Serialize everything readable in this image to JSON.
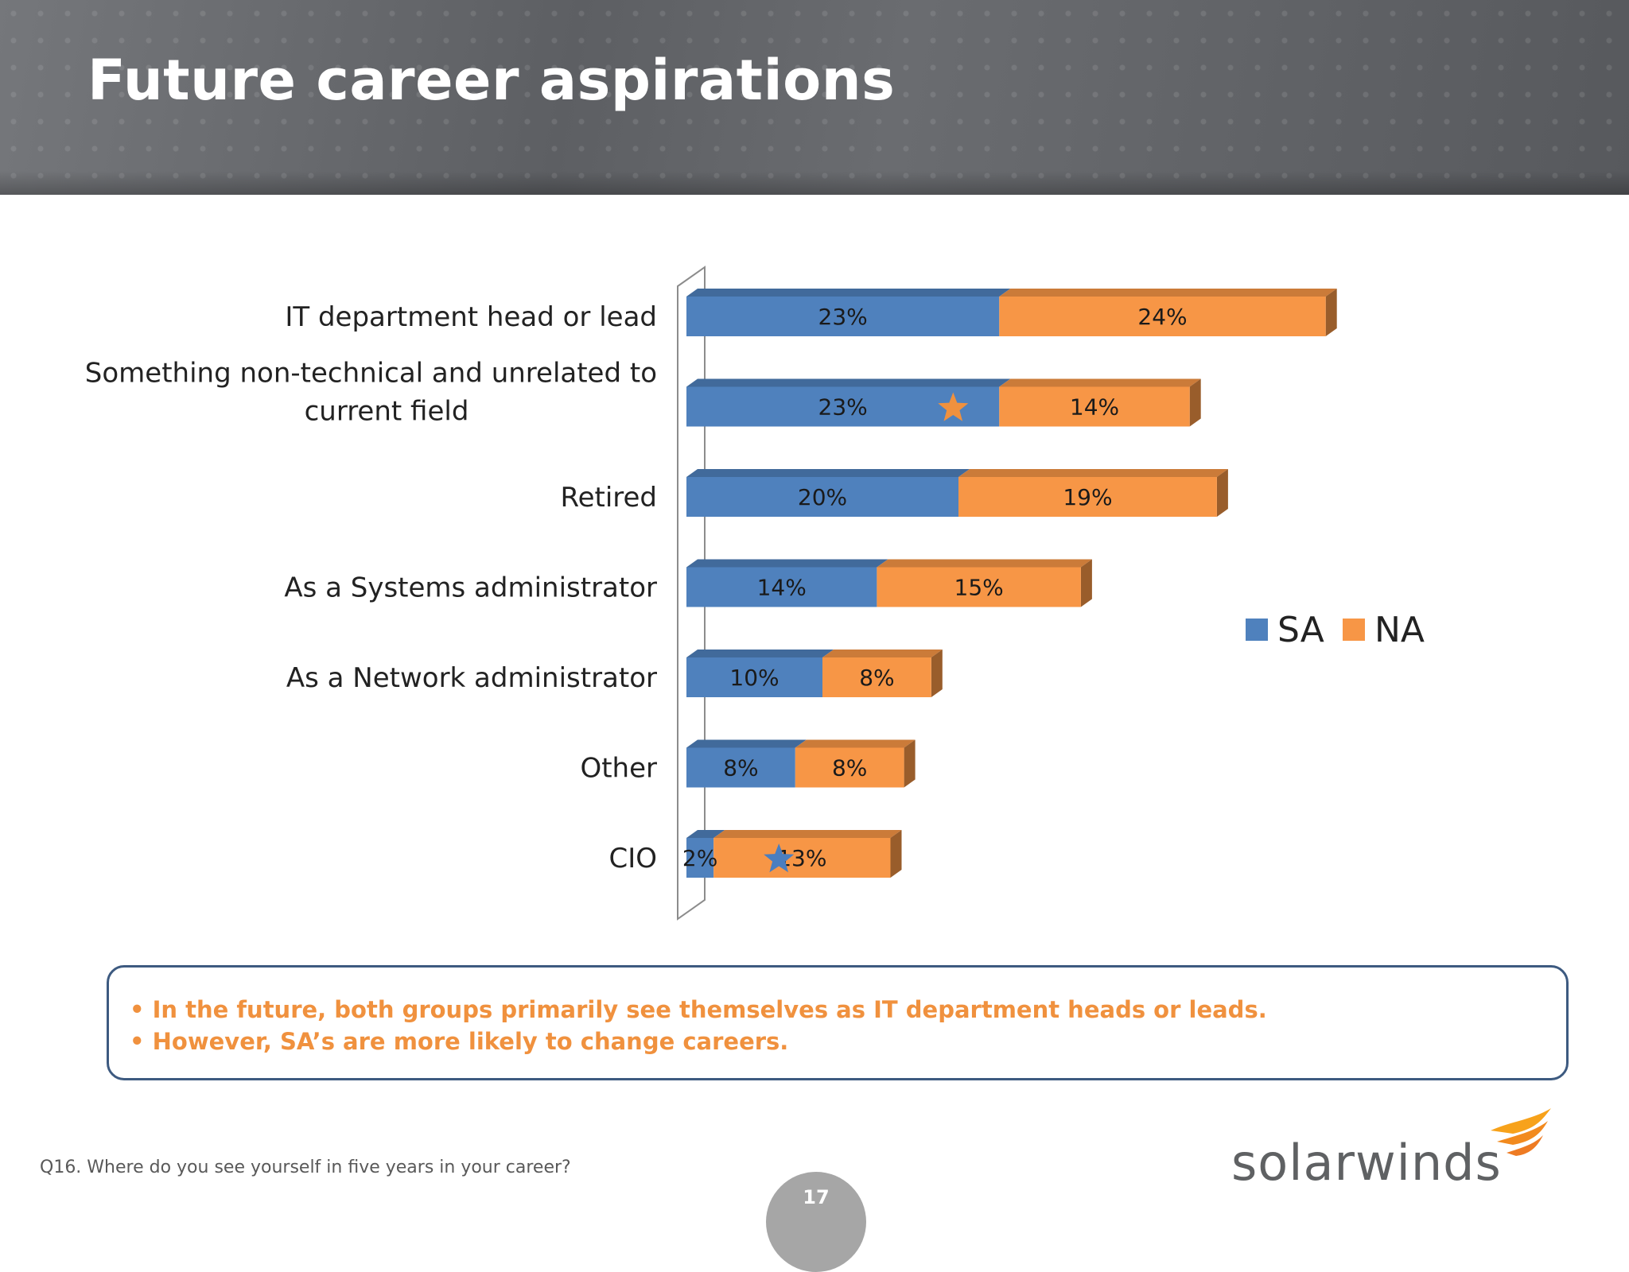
{
  "header": {
    "title": "Future career aspirations"
  },
  "chart_data": {
    "type": "bar",
    "orientation": "horizontal",
    "stacked": true,
    "categories": [
      [
        "IT department head or lead"
      ],
      [
        "Something non-technical and unrelated to",
        "current field"
      ],
      [
        "Retired"
      ],
      [
        "As a Systems administrator"
      ],
      [
        "As a Network administrator"
      ],
      [
        "Other"
      ],
      [
        "CIO"
      ]
    ],
    "series": [
      {
        "name": "SA",
        "values": [
          23,
          23,
          20,
          14,
          10,
          8,
          2
        ],
        "labels": [
          "23%",
          "23%",
          "20%",
          "14%",
          "10%",
          "8%",
          "2%"
        ]
      },
      {
        "name": "NA",
        "values": [
          24,
          14,
          19,
          15,
          8,
          8,
          13
        ],
        "labels": [
          "24%",
          "14%",
          "19%",
          "15%",
          "8%",
          "8%",
          "13%"
        ]
      }
    ],
    "legend": [
      "SA",
      "NA"
    ],
    "legend_position": "right",
    "markers": [
      {
        "category_index": 1,
        "series": "SA",
        "icon": "star",
        "color": "#f0913e"
      },
      {
        "category_index": 6,
        "series": "NA",
        "icon": "star",
        "color": "#4a7ebf"
      }
    ],
    "colors": {
      "SA": "#4f81bd",
      "NA": "#f79646"
    },
    "grid": false
  },
  "notes": [
    "• In the future, both groups primarily see themselves as  IT department heads or leads.",
    "• However, SA’s are more likely to change careers."
  ],
  "footer": {
    "question": "Q16. Where do you see yourself in five years in your career?",
    "page_number": "17",
    "logo_text": "solarwinds"
  }
}
